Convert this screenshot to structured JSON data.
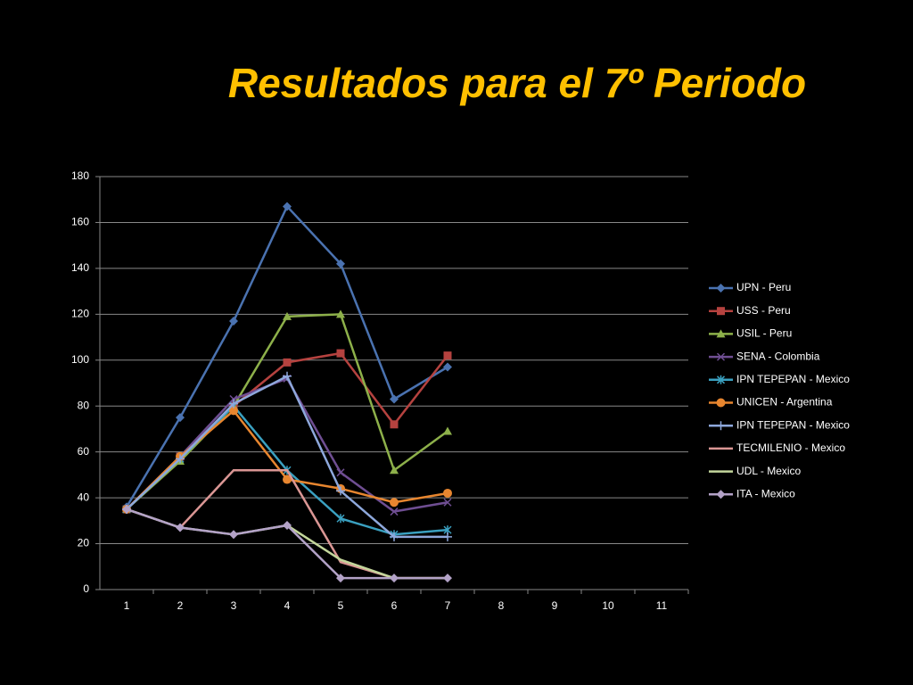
{
  "chart_data": {
    "type": "line",
    "title": "Resultados para el 7º Periodo",
    "categories": [
      "1",
      "2",
      "3",
      "4",
      "5",
      "6",
      "7",
      "8",
      "9",
      "10",
      "11"
    ],
    "ylim": [
      0,
      180
    ],
    "yticks": [
      0,
      20,
      40,
      60,
      80,
      100,
      120,
      140,
      160,
      180
    ],
    "grid": true,
    "legend": "right",
    "series": [
      {
        "name": "UPN - Peru",
        "color": "#4a72b0",
        "marker": "diamond",
        "values": [
          36,
          75,
          117,
          167,
          142,
          83,
          97,
          null,
          null,
          null,
          null
        ]
      },
      {
        "name": "USS - Peru",
        "color": "#b5423f",
        "marker": "square",
        "values": [
          35,
          58,
          80,
          99,
          103,
          72,
          102,
          null,
          null,
          null,
          null
        ]
      },
      {
        "name": "USIL - Peru",
        "color": "#8db04a",
        "marker": "triangle",
        "values": [
          35,
          56,
          80,
          119,
          120,
          52,
          69,
          null,
          null,
          null,
          null
        ]
      },
      {
        "name": "SENA - Colombia",
        "color": "#6f4e92",
        "marker": "x",
        "values": [
          35,
          58,
          83,
          92,
          51,
          34,
          38,
          null,
          null,
          null,
          null
        ]
      },
      {
        "name": "IPN TEPEPAN - Mexico",
        "color": "#3aa0c0",
        "marker": "asterisk",
        "values": [
          35,
          57,
          80,
          52,
          31,
          24,
          26,
          null,
          null,
          null,
          null
        ]
      },
      {
        "name": "UNICEN - Argentina",
        "color": "#e8862f",
        "marker": "circle",
        "values": [
          35,
          58,
          78,
          48,
          44,
          38,
          42,
          null,
          null,
          null,
          null
        ]
      },
      {
        "name": "IPN TEPEPAN - Mexico",
        "color": "#8ea8dc",
        "marker": "plus",
        "values": [
          35,
          57,
          81,
          93,
          43,
          23,
          23,
          null,
          null,
          null,
          null
        ]
      },
      {
        "name": "TECMILENIO - Mexico",
        "color": "#da9694",
        "marker": "none",
        "values": [
          35,
          27,
          52,
          52,
          12,
          5,
          5,
          null,
          null,
          null,
          null
        ]
      },
      {
        "name": "UDL - Mexico",
        "color": "#c3d69b",
        "marker": "none",
        "values": [
          35,
          27,
          24,
          28,
          13,
          5,
          5,
          null,
          null,
          null,
          null
        ]
      },
      {
        "name": "ITA - Mexico",
        "color": "#b3a2c7",
        "marker": "diamond",
        "values": [
          35,
          27,
          24,
          28,
          5,
          5,
          5,
          null,
          null,
          null,
          null
        ]
      }
    ]
  }
}
